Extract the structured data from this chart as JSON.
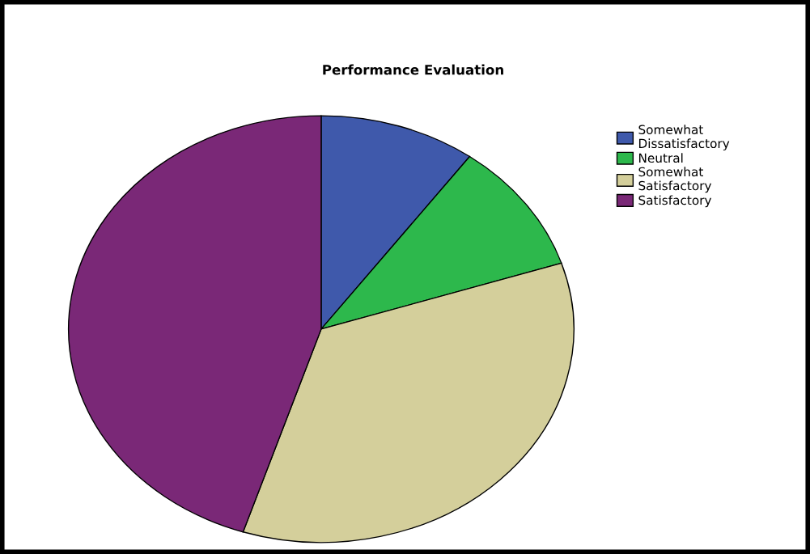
{
  "chart_data": {
    "type": "pie",
    "title": "Performance Evaluation",
    "categories": [
      "Somewhat\nDissatisfactory",
      "Neutral",
      "Somewhat\nSatisfactory",
      "Satisfactory"
    ],
    "values": [
      10,
      10,
      35,
      45
    ],
    "colors": [
      "#3f59ab",
      "#2db84c",
      "#d4cf9b",
      "#7a2877"
    ],
    "legend": "top right"
  }
}
